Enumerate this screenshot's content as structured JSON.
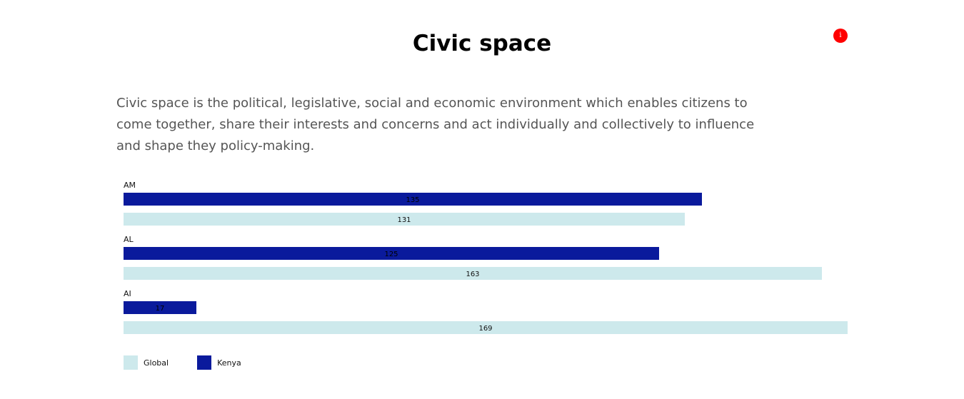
{
  "header": {
    "title": "Civic space",
    "info_label": "i"
  },
  "description": "Civic space is the political, legislative, social and economic environment which enables citizens to come together, share their interests and concerns and act individually and collectively to influence and shape they policy-making.",
  "colors": {
    "kenya": "#0a1a9c",
    "global": "#cde9ec",
    "info": "#ff0000"
  },
  "legend": {
    "items": [
      {
        "label": "Global",
        "color_key": "global"
      },
      {
        "label": "Kenya",
        "color_key": "kenya"
      }
    ]
  },
  "chart_data": {
    "type": "bar",
    "orientation": "horizontal",
    "categories": [
      "AM",
      "AL",
      "AI"
    ],
    "series": [
      {
        "name": "Kenya",
        "values": [
          135,
          125,
          17
        ]
      },
      {
        "name": "Global",
        "values": [
          131,
          163,
          169
        ]
      }
    ],
    "xlim": [
      0,
      169
    ],
    "grid": false,
    "legend_position": "bottom-left",
    "data_labels": true
  }
}
